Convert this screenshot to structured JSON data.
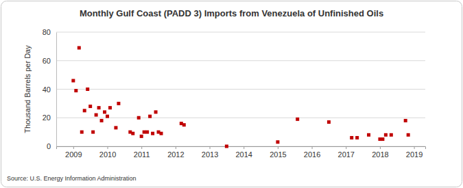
{
  "chart_data": {
    "type": "scatter",
    "title": "Monthly Gulf Coast (PADD 3) Imports from Venezuela of Unfinished Oils",
    "y_label": "Thousand Barrels per Day",
    "source": "Source: U.S. Energy Information Administration",
    "marker": "square",
    "grid": true,
    "series": [
      {
        "color": "#c00000",
        "x": [
          2009.0,
          2009.08,
          2009.17,
          2009.25,
          2009.33,
          2009.42,
          2009.5,
          2009.58,
          2009.67,
          2009.75,
          2009.83,
          2009.92,
          2010.0,
          2010.08,
          2010.25,
          2010.33,
          2010.67,
          2010.75,
          2010.92,
          2011.0,
          2011.08,
          2011.17,
          2011.25,
          2011.33,
          2011.42,
          2011.5,
          2011.58,
          2012.17,
          2012.25,
          2013.5,
          2015.0,
          2015.58,
          2016.5,
          2017.17,
          2017.33,
          2017.67,
          2018.0,
          2018.08,
          2018.17,
          2018.33,
          2018.75,
          2018.83
        ],
        "values": [
          46,
          39,
          69,
          10,
          25,
          40,
          28,
          10,
          22,
          27,
          18,
          24,
          21,
          27,
          13,
          30,
          10,
          9,
          20,
          7,
          10,
          10,
          21,
          9,
          24,
          10,
          9,
          16,
          15,
          0,
          3,
          19,
          17,
          6,
          6,
          8,
          5,
          5,
          8,
          8,
          18,
          8
        ]
      }
    ],
    "xlim": [
      2008.5,
      2019.33
    ],
    "xticks": [
      2009,
      2010,
      2011,
      2012,
      2013,
      2014,
      2015,
      2016,
      2017,
      2018,
      2019
    ],
    "ylim": [
      0,
      80
    ],
    "yticks": [
      0,
      20,
      40,
      60,
      80
    ]
  }
}
